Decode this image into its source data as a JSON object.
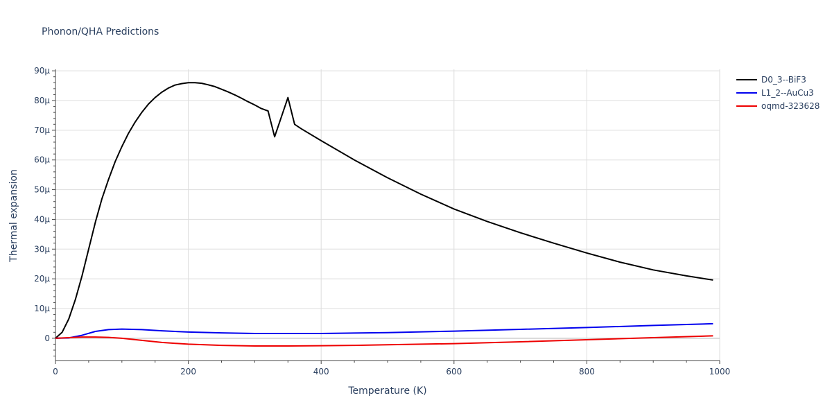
{
  "chart_data": {
    "type": "line",
    "title": "Phonon/QHA Predictions",
    "xlabel": "Temperature (K)",
    "ylabel": "Thermal expansion",
    "xlim": [
      0,
      1000
    ],
    "ylim": [
      -7.5,
      90.5
    ],
    "x_ticks": [
      {
        "value": 0,
        "label": "0"
      },
      {
        "value": 200,
        "label": "200"
      },
      {
        "value": 400,
        "label": "400"
      },
      {
        "value": 600,
        "label": "600"
      },
      {
        "value": 800,
        "label": "800"
      },
      {
        "value": 1000,
        "label": "1000"
      }
    ],
    "y_ticks": [
      {
        "value": 0,
        "label": "0"
      },
      {
        "value": 10,
        "label": "10μ"
      },
      {
        "value": 20,
        "label": "20μ"
      },
      {
        "value": 30,
        "label": "30μ"
      },
      {
        "value": 40,
        "label": "40μ"
      },
      {
        "value": 50,
        "label": "50μ"
      },
      {
        "value": 60,
        "label": "60μ"
      },
      {
        "value": 70,
        "label": "70μ"
      },
      {
        "value": 80,
        "label": "80μ"
      },
      {
        "value": 90,
        "label": "90μ"
      }
    ],
    "grid": true,
    "legend_position": "top-right",
    "series": [
      {
        "name": "D0_3--BiF3",
        "color": "#000000",
        "points": [
          [
            0,
            0
          ],
          [
            10,
            2
          ],
          [
            20,
            6.5
          ],
          [
            30,
            13
          ],
          [
            40,
            21
          ],
          [
            50,
            30
          ],
          [
            60,
            39
          ],
          [
            70,
            47
          ],
          [
            80,
            53.5
          ],
          [
            90,
            59.5
          ],
          [
            100,
            64.5
          ],
          [
            110,
            69
          ],
          [
            120,
            72.8
          ],
          [
            130,
            76
          ],
          [
            140,
            78.8
          ],
          [
            150,
            81
          ],
          [
            160,
            82.8
          ],
          [
            170,
            84.2
          ],
          [
            180,
            85.2
          ],
          [
            190,
            85.7
          ],
          [
            200,
            86
          ],
          [
            210,
            86
          ],
          [
            220,
            85.8
          ],
          [
            230,
            85.3
          ],
          [
            240,
            84.7
          ],
          [
            250,
            83.8
          ],
          [
            260,
            82.9
          ],
          [
            270,
            81.9
          ],
          [
            280,
            80.8
          ],
          [
            290,
            79.6
          ],
          [
            300,
            78.5
          ],
          [
            310,
            77.3
          ],
          [
            320,
            76.5
          ],
          [
            330,
            67.8
          ],
          [
            350,
            81
          ],
          [
            360,
            72
          ],
          [
            370,
            70.5
          ],
          [
            400,
            66.5
          ],
          [
            450,
            60
          ],
          [
            500,
            54
          ],
          [
            550,
            48.5
          ],
          [
            600,
            43.5
          ],
          [
            650,
            39.3
          ],
          [
            700,
            35.5
          ],
          [
            750,
            32
          ],
          [
            800,
            28.7
          ],
          [
            850,
            25.6
          ],
          [
            900,
            23
          ],
          [
            950,
            21
          ],
          [
            990,
            19.6
          ]
        ]
      },
      {
        "name": "L1_2--AuCu3",
        "color": "#0000ee",
        "points": [
          [
            0,
            0
          ],
          [
            20,
            0.1
          ],
          [
            40,
            1
          ],
          [
            60,
            2.3
          ],
          [
            80,
            2.9
          ],
          [
            100,
            3.1
          ],
          [
            130,
            2.9
          ],
          [
            160,
            2.5
          ],
          [
            200,
            2.1
          ],
          [
            250,
            1.8
          ],
          [
            300,
            1.6
          ],
          [
            350,
            1.6
          ],
          [
            400,
            1.6
          ],
          [
            500,
            1.9
          ],
          [
            600,
            2.4
          ],
          [
            700,
            3
          ],
          [
            800,
            3.6
          ],
          [
            900,
            4.3
          ],
          [
            990,
            4.9
          ]
        ]
      },
      {
        "name": "oqmd-323628",
        "color": "#ee0000",
        "points": [
          [
            0,
            0
          ],
          [
            20,
            0.2
          ],
          [
            40,
            0.4
          ],
          [
            60,
            0.4
          ],
          [
            80,
            0.3
          ],
          [
            100,
            0
          ],
          [
            130,
            -0.7
          ],
          [
            160,
            -1.4
          ],
          [
            200,
            -2
          ],
          [
            250,
            -2.4
          ],
          [
            300,
            -2.6
          ],
          [
            350,
            -2.6
          ],
          [
            400,
            -2.5
          ],
          [
            450,
            -2.4
          ],
          [
            500,
            -2.2
          ],
          [
            600,
            -1.8
          ],
          [
            700,
            -1.2
          ],
          [
            800,
            -0.5
          ],
          [
            900,
            0.2
          ],
          [
            990,
            0.8
          ]
        ]
      }
    ]
  }
}
